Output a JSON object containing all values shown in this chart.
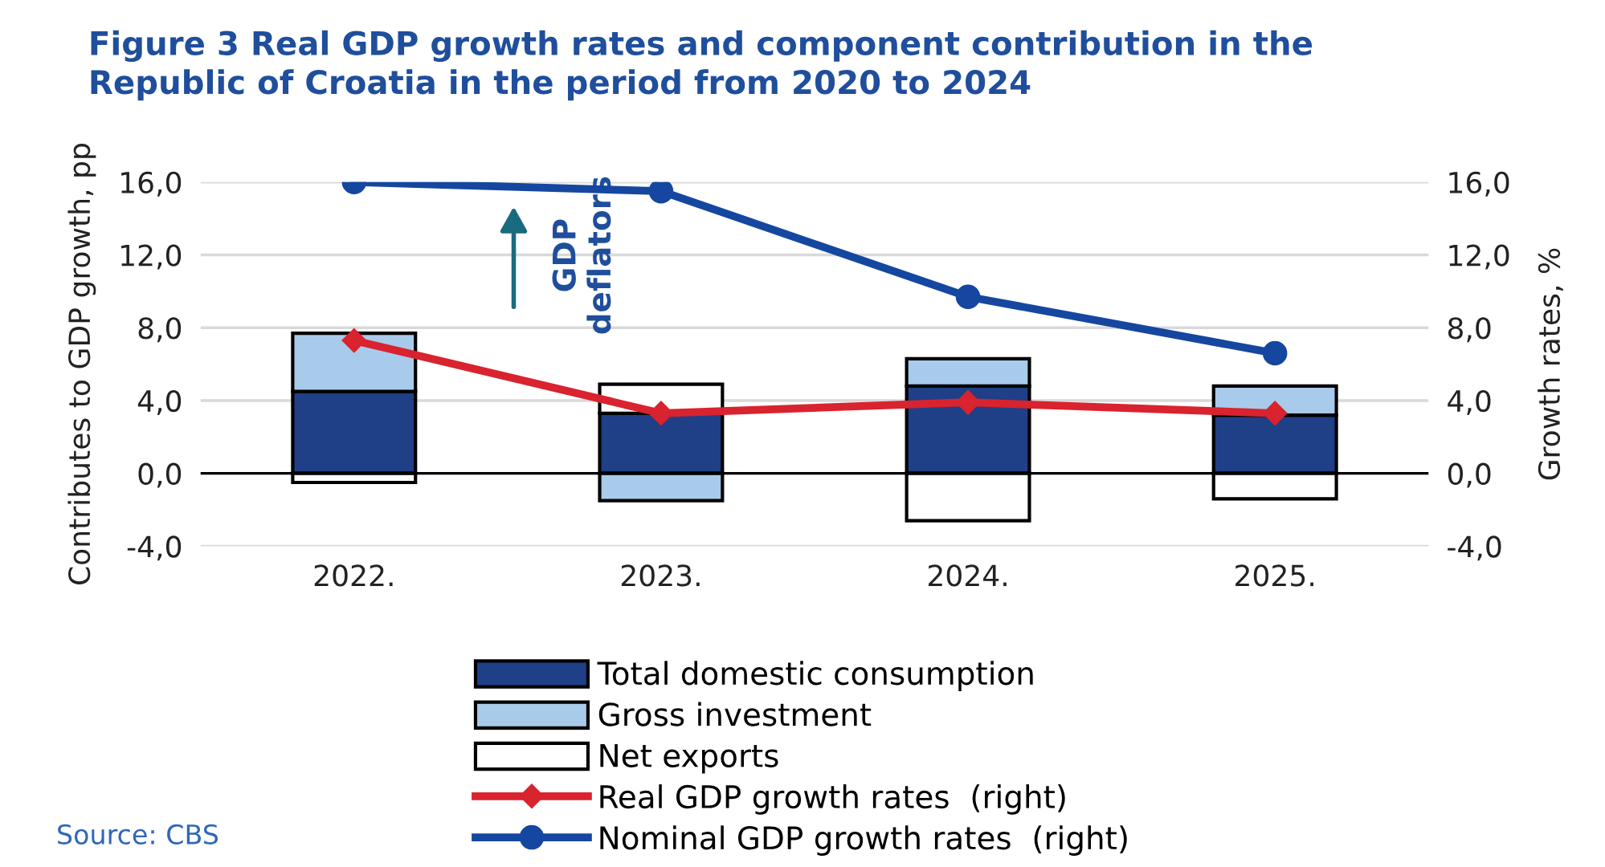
{
  "chart_data": {
    "type": "bar",
    "stacked": true,
    "title": "Figure 3 Real GDP growth rates and component contribution in the\nRepublic of Croatia in the period from 2020 to 2024",
    "ylabel": "Contributes to GDP growth, pp",
    "y2label": "Growth rates, %",
    "categories": [
      "2022.",
      "2023.",
      "2024.",
      "2025."
    ],
    "series": [
      {
        "name": "Total domestic consumption",
        "color": "#1f3f87",
        "values": [
          4.5,
          3.3,
          4.8,
          3.2
        ]
      },
      {
        "name": "Gross investment",
        "color": "#a9cbeb",
        "values": [
          3.2,
          -1.5,
          1.5,
          1.6
        ]
      },
      {
        "name": "Net exports",
        "color": "#ffffff",
        "values": [
          -0.5,
          1.6,
          -2.6,
          -1.4
        ]
      },
      {
        "name": "Real GDP growth rates  (right)",
        "type": "line",
        "axis": "y2",
        "color": "#d9232e",
        "marker": "diamond",
        "values": [
          7.3,
          3.3,
          3.9,
          3.3
        ]
      },
      {
        "name": "Nominal GDP growth rates  (right)",
        "type": "line",
        "axis": "y2",
        "color": "#1547a0",
        "marker": "circle",
        "values": [
          16.0,
          15.5,
          9.7,
          6.6
        ]
      }
    ],
    "ylim": [
      -4,
      16
    ],
    "yticks": [
      {
        "value": -4,
        "label": "-4,0"
      },
      {
        "value": 0,
        "label": "0,0"
      },
      {
        "value": 4,
        "label": "4,0"
      },
      {
        "value": 8,
        "label": "8,0"
      },
      {
        "value": 12,
        "label": "12,0"
      },
      {
        "value": 16,
        "label": "16,0"
      }
    ],
    "y2lim": [
      -4,
      16
    ],
    "y2ticks": [
      {
        "value": -4,
        "label": "-4,0"
      },
      {
        "value": 0,
        "label": "0,0"
      },
      {
        "value": 4,
        "label": "4,0"
      },
      {
        "value": 8,
        "label": "8,0"
      },
      {
        "value": 12,
        "label": "12,0"
      },
      {
        "value": 16,
        "label": "16,0"
      }
    ],
    "grid": "y",
    "legend": "bottom",
    "annotations": [
      "GDP\ndeflators",
      "Source: CBS"
    ]
  }
}
